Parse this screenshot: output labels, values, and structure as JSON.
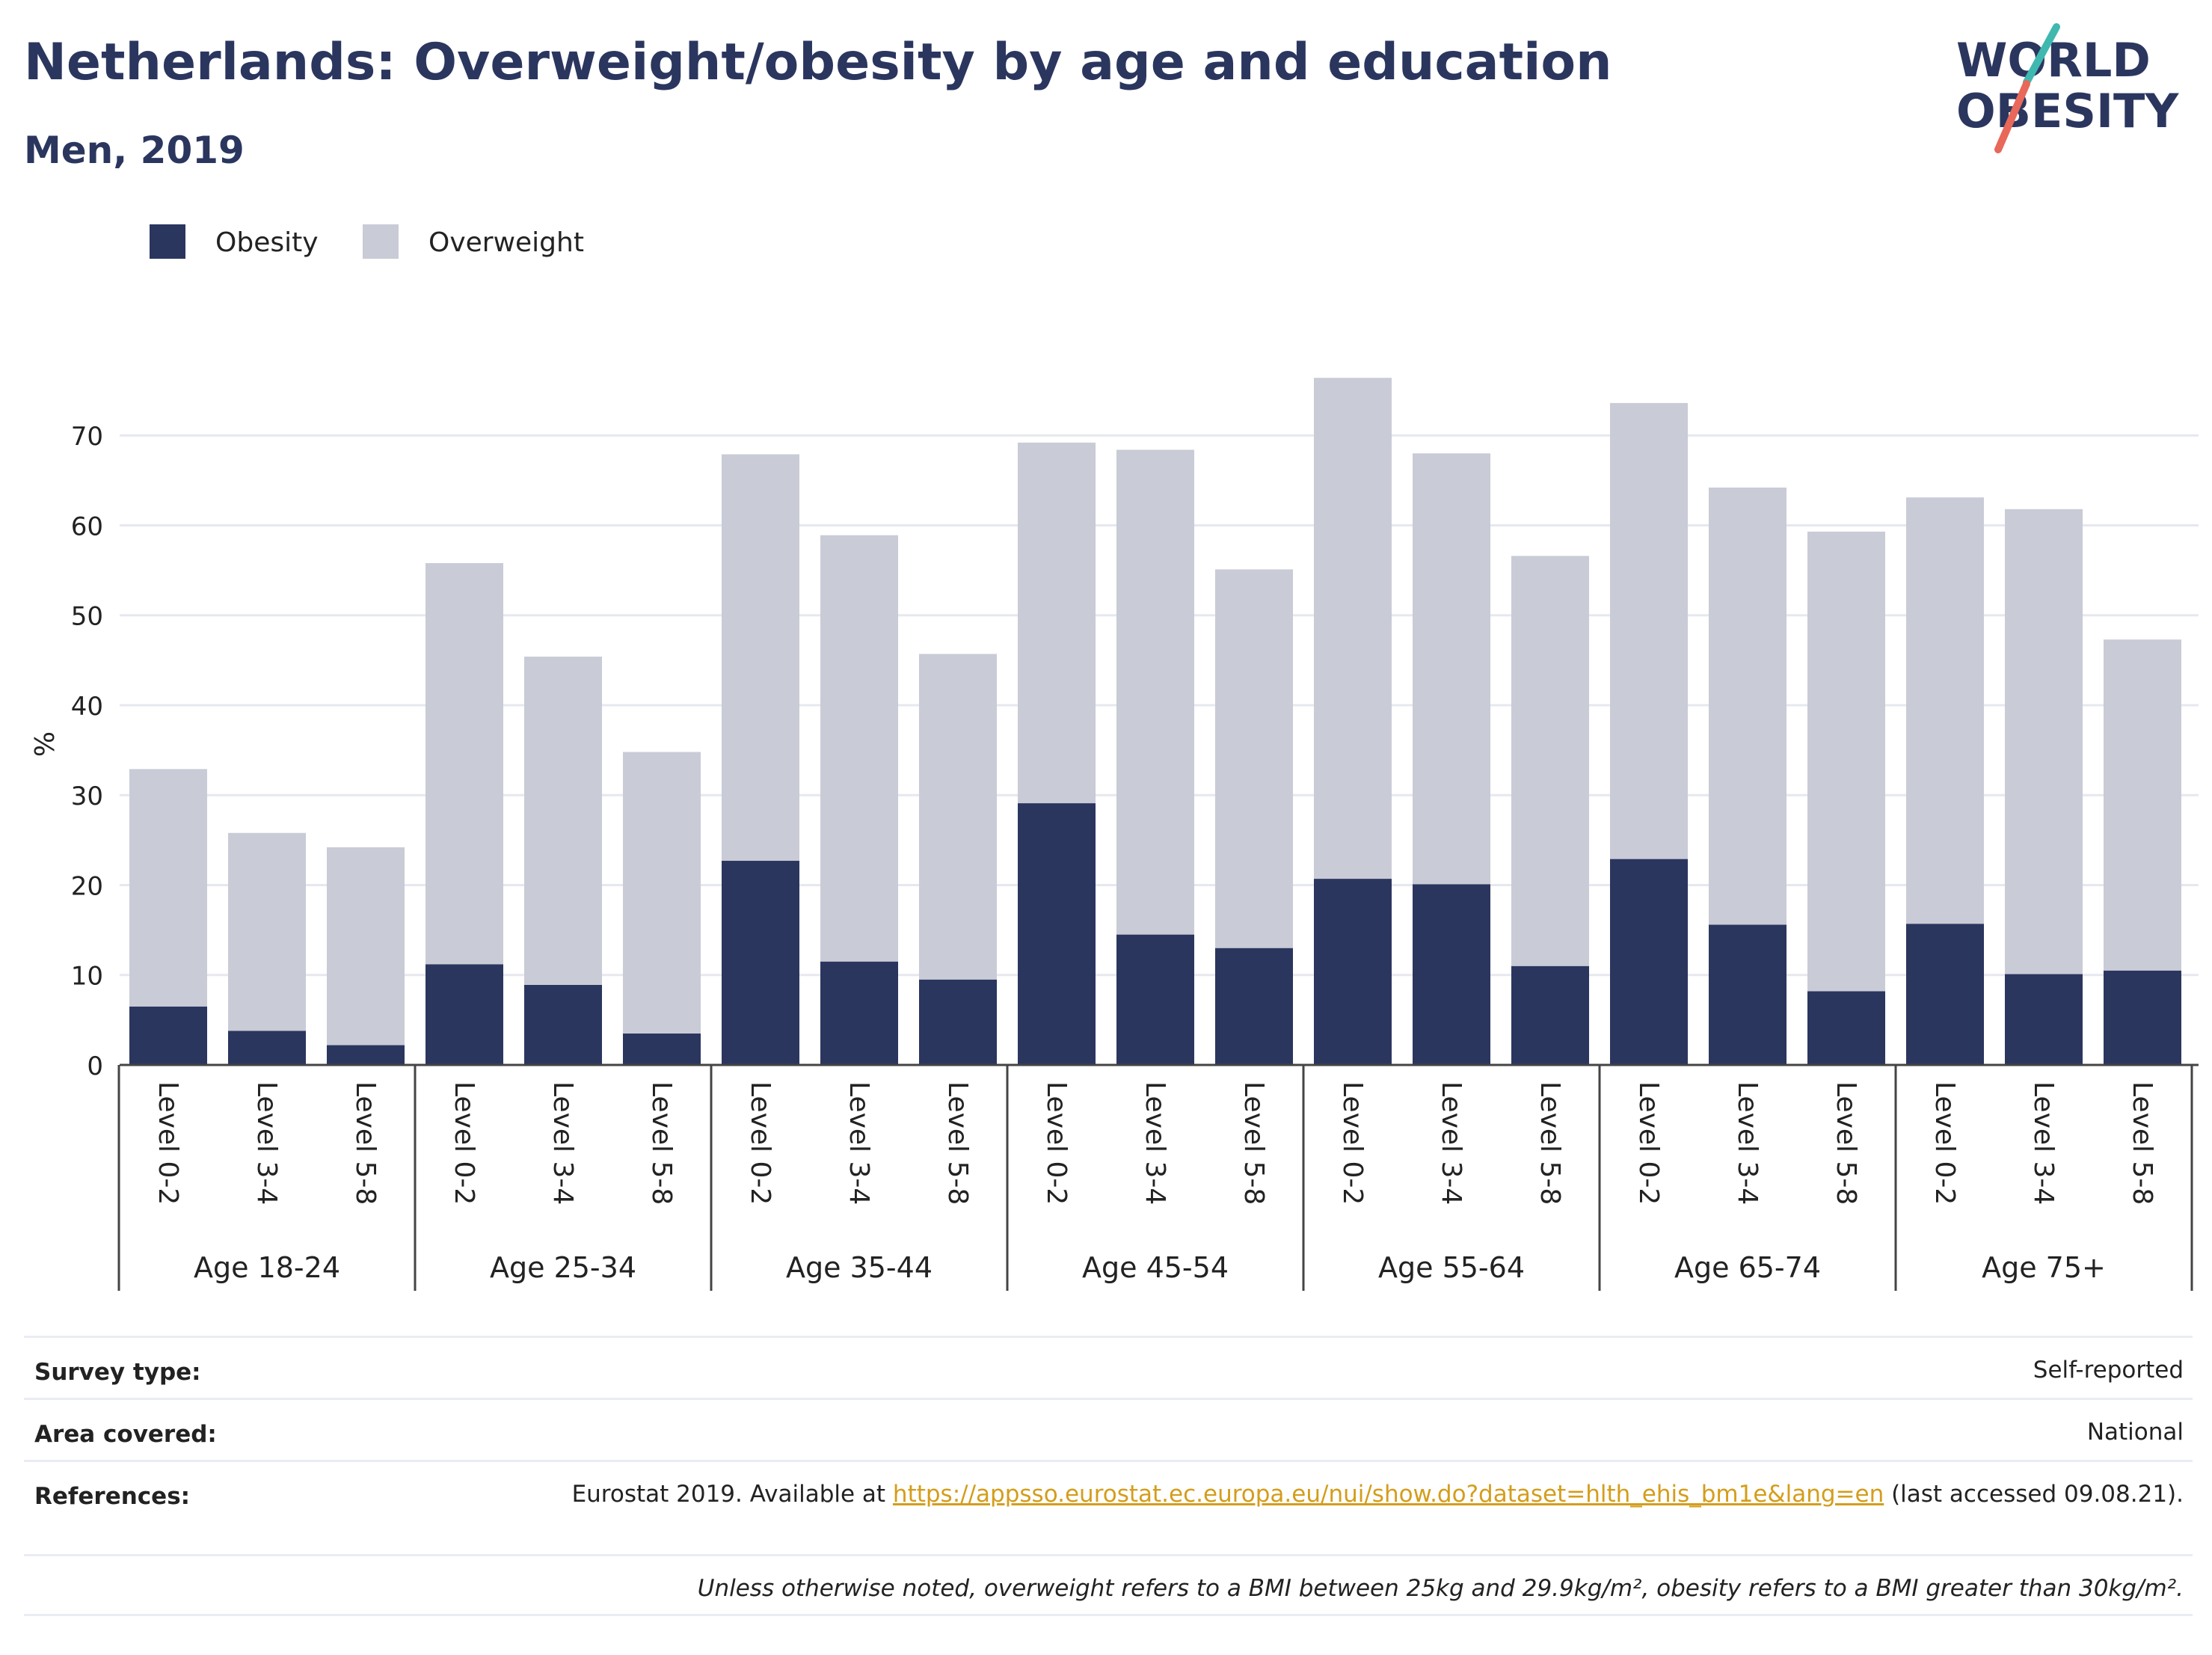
{
  "header": {
    "title": "Netherlands: Overweight/obesity by age and education",
    "subtitle": "Men, 2019"
  },
  "logo": {
    "line1": "WORLD",
    "line2": "OBESITY",
    "colors": {
      "text": "#2b365f",
      "slash_top": "#3fb8b0",
      "slash_bottom": "#e8685a"
    }
  },
  "chart_data": {
    "type": "bar",
    "stacked": true,
    "ylabel": "%",
    "ylim": [
      0,
      78
    ],
    "yticks": [
      0,
      10,
      20,
      30,
      40,
      50,
      60,
      70
    ],
    "grid": true,
    "legend_position": "top-left",
    "categories": [
      "Level 0-2",
      "Level 3-4",
      "Level 5-8",
      "Level 0-2",
      "Level 3-4",
      "Level 5-8",
      "Level 0-2",
      "Level 3-4",
      "Level 5-8",
      "Level 0-2",
      "Level 3-4",
      "Level 5-8",
      "Level 0-2",
      "Level 3-4",
      "Level 5-8",
      "Level 0-2",
      "Level 3-4",
      "Level 5-8",
      "Level 0-2",
      "Level 3-4",
      "Level 5-8"
    ],
    "groups": [
      {
        "label": "Age 18-24",
        "size": 3
      },
      {
        "label": "Age 25-34",
        "size": 3
      },
      {
        "label": "Age 35-44",
        "size": 3
      },
      {
        "label": "Age 45-54",
        "size": 3
      },
      {
        "label": "Age 55-64",
        "size": 3
      },
      {
        "label": "Age 65-74",
        "size": 3
      },
      {
        "label": "Age 75+",
        "size": 3
      }
    ],
    "series": [
      {
        "name": "Obesity",
        "color": "#2b365f",
        "values": [
          6.5,
          3.8,
          2.2,
          11.2,
          8.9,
          3.5,
          22.7,
          11.5,
          9.5,
          29.1,
          14.5,
          13.0,
          20.7,
          20.1,
          11.0,
          22.9,
          15.6,
          8.2,
          15.7,
          10.1,
          10.5
        ]
      },
      {
        "name": "Overweight",
        "color": "#c9cbd6",
        "values": [
          26.4,
          22.0,
          22.0,
          44.6,
          36.5,
          31.3,
          45.2,
          47.4,
          36.2,
          40.1,
          53.9,
          42.1,
          55.7,
          47.9,
          45.6,
          50.7,
          48.6,
          51.1,
          47.4,
          51.7,
          36.8
        ]
      }
    ]
  },
  "info": {
    "survey_type_label": "Survey type:",
    "survey_type_value": "Self-reported",
    "area_label": "Area covered:",
    "area_value": "National",
    "references_label": "References:",
    "references_prefix": "Eurostat 2019. Available at ",
    "references_link": "https://appsso.eurostat.ec.europa.eu/nui/show.do?dataset=hlth_ehis_bm1e&lang=en",
    "references_suffix": " (last accessed 09.08.21).",
    "note": "Unless otherwise noted, overweight refers to a BMI between 25kg and 29.9kg/m², obesity refers to a BMI greater than 30kg/m²."
  }
}
